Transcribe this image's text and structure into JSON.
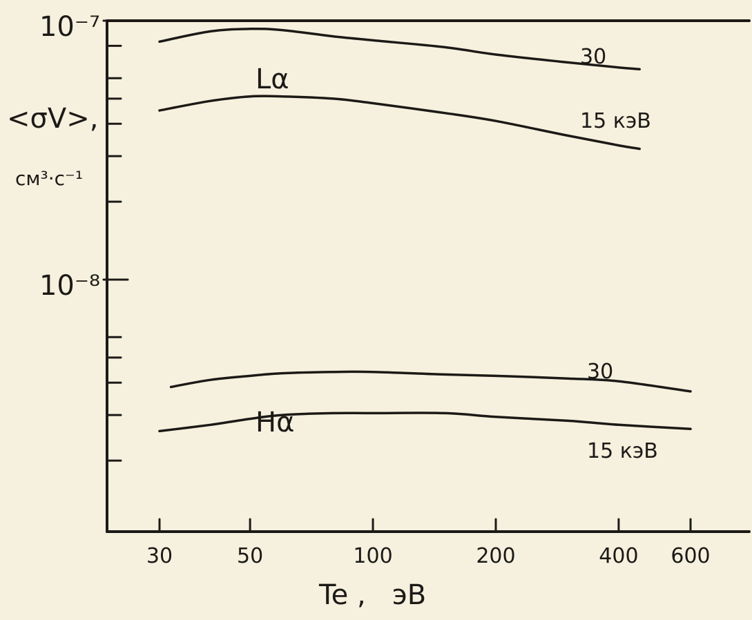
{
  "chart_data": {
    "type": "line",
    "title": "",
    "xlabel": "Te ,   эВ",
    "xscale": "log",
    "xlim": [
      30,
      700
    ],
    "xticks": [
      30,
      50,
      100,
      200,
      400,
      600
    ],
    "xtick_labels": [
      "30",
      "50",
      "100",
      "200",
      "400",
      "600"
    ],
    "ylabel": "<σV>,",
    "ylabel_units": "см³·с⁻¹",
    "yscale": "log",
    "ylim": [
      2e-09,
      1.1e-07
    ],
    "yticks": [
      1e-07,
      1e-08
    ],
    "ytick_labels": [
      "10⁻⁷",
      "10⁻⁸"
    ],
    "grid": false,
    "legend": "none",
    "groups": [
      {
        "label": "Lα"
      },
      {
        "label": "Hα"
      }
    ],
    "series": [
      {
        "label": "30",
        "group": "Lα",
        "x": [
          30,
          40,
          50,
          60,
          80,
          100,
          150,
          200,
          300,
          400,
          450
        ],
        "y": [
          8.3e-08,
          9.1e-08,
          9.3e-08,
          9.2e-08,
          8.7e-08,
          8.4e-08,
          7.9e-08,
          7.4e-08,
          6.9e-08,
          6.6e-08,
          6.5e-08
        ]
      },
      {
        "label": "15 кэВ",
        "group": "Lα",
        "x": [
          30,
          40,
          50,
          60,
          80,
          100,
          150,
          200,
          300,
          400,
          450
        ],
        "y": [
          4.5e-08,
          4.9e-08,
          5.1e-08,
          5.1e-08,
          5e-08,
          4.8e-08,
          4.4e-08,
          4.1e-08,
          3.6e-08,
          3.3e-08,
          3.2e-08
        ]
      },
      {
        "label": "30",
        "group": "Hα",
        "x": [
          32,
          40,
          50,
          60,
          80,
          100,
          150,
          200,
          300,
          400,
          600
        ],
        "y": [
          3.85e-09,
          4.1e-09,
          4.25e-09,
          4.35e-09,
          4.4e-09,
          4.4e-09,
          4.3e-09,
          4.25e-09,
          4.15e-09,
          4.05e-09,
          3.7e-09
        ]
      },
      {
        "label": "15 кэВ",
        "group": "Hα",
        "x": [
          30,
          40,
          50,
          60,
          80,
          100,
          150,
          200,
          300,
          400,
          600
        ],
        "y": [
          2.6e-09,
          2.75e-09,
          2.9e-09,
          3e-09,
          3.05e-09,
          3.05e-09,
          3.05e-09,
          2.95e-09,
          2.85e-09,
          2.75e-09,
          2.65e-09
        ]
      }
    ]
  }
}
